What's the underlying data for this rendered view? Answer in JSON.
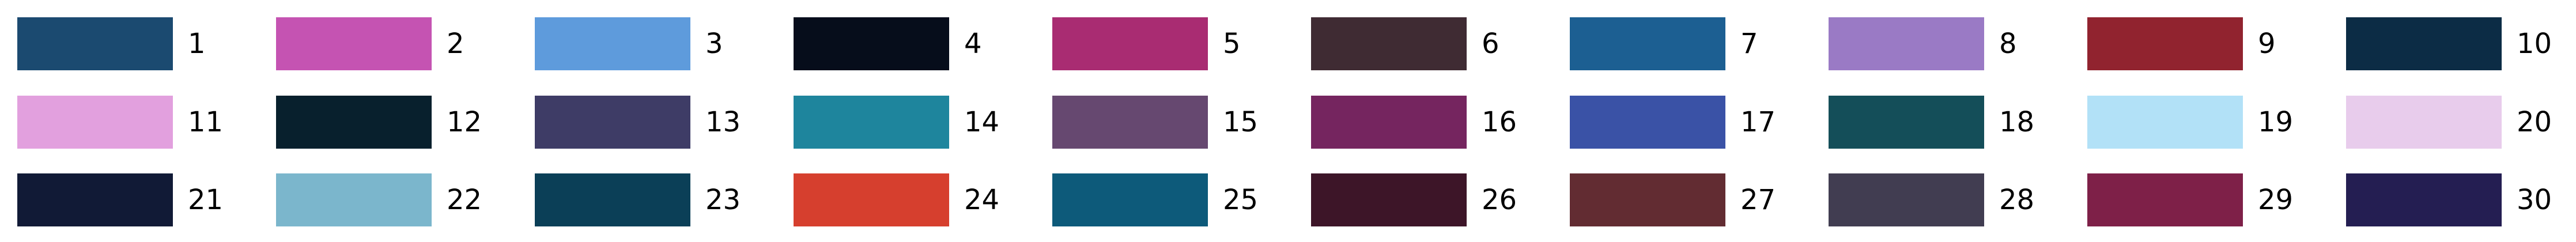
{
  "swatches": [
    {
      "label": "1",
      "color": "#1B4A70"
    },
    {
      "label": "2",
      "color": "#C553B2"
    },
    {
      "label": "3",
      "color": "#5E9BDC"
    },
    {
      "label": "4",
      "color": "#060D1B"
    },
    {
      "label": "5",
      "color": "#A92C72"
    },
    {
      "label": "6",
      "color": "#3F2B33"
    },
    {
      "label": "7",
      "color": "#1C5F92"
    },
    {
      "label": "8",
      "color": "#9A7AC5"
    },
    {
      "label": "9",
      "color": "#91232F"
    },
    {
      "label": "10",
      "color": "#0C2C45"
    },
    {
      "label": "11",
      "color": "#E2A0DE"
    },
    {
      "label": "12",
      "color": "#08202D"
    },
    {
      "label": "13",
      "color": "#3E3C66"
    },
    {
      "label": "14",
      "color": "#1E859D"
    },
    {
      "label": "15",
      "color": "#664870"
    },
    {
      "label": "16",
      "color": "#75255F"
    },
    {
      "label": "17",
      "color": "#3A52A6"
    },
    {
      "label": "18",
      "color": "#144E59"
    },
    {
      "label": "19",
      "color": "#B2E1F7"
    },
    {
      "label": "20",
      "color": "#E8CCEC"
    },
    {
      "label": "21",
      "color": "#111A36"
    },
    {
      "label": "22",
      "color": "#7BB6CC"
    },
    {
      "label": "23",
      "color": "#0B3F57"
    },
    {
      "label": "24",
      "color": "#D63F2E"
    },
    {
      "label": "25",
      "color": "#0D5A7A"
    },
    {
      "label": "26",
      "color": "#3D1528"
    },
    {
      "label": "27",
      "color": "#622C32"
    },
    {
      "label": "28",
      "color": "#413D51"
    },
    {
      "label": "29",
      "color": "#7E2048"
    },
    {
      "label": "30",
      "color": "#241E52"
    }
  ]
}
